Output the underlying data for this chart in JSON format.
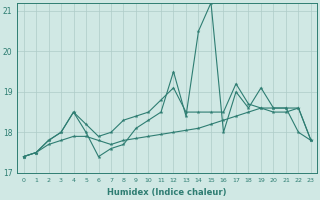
{
  "title": "",
  "xlabel": "Humidex (Indice chaleur)",
  "x_values": [
    0,
    1,
    2,
    3,
    4,
    5,
    6,
    7,
    8,
    9,
    10,
    11,
    12,
    13,
    14,
    15,
    16,
    17,
    18,
    19,
    20,
    21,
    22,
    23
  ],
  "line1": [
    17.4,
    17.5,
    17.8,
    18.0,
    18.5,
    18.0,
    17.4,
    17.6,
    17.7,
    18.1,
    18.3,
    18.5,
    19.5,
    18.4,
    20.5,
    21.2,
    18.0,
    19.0,
    18.6,
    19.1,
    18.6,
    18.6,
    18.0,
    17.8
  ],
  "line2": [
    17.4,
    17.5,
    17.8,
    18.0,
    18.5,
    18.2,
    17.9,
    18.0,
    18.3,
    18.4,
    18.5,
    18.8,
    19.1,
    18.5,
    18.5,
    18.5,
    18.5,
    19.2,
    18.7,
    18.6,
    18.5,
    18.5,
    18.6,
    17.8
  ],
  "line3": [
    17.4,
    17.5,
    17.7,
    17.8,
    17.9,
    17.9,
    17.8,
    17.7,
    17.8,
    17.85,
    17.9,
    17.95,
    18.0,
    18.05,
    18.1,
    18.2,
    18.3,
    18.4,
    18.5,
    18.6,
    18.6,
    18.6,
    18.6,
    17.8
  ],
  "ylim": [
    17.0,
    21.2
  ],
  "yticks": [
    17,
    18,
    19,
    20,
    21
  ],
  "xticks": [
    0,
    1,
    2,
    3,
    4,
    5,
    6,
    7,
    8,
    9,
    10,
    11,
    12,
    13,
    14,
    15,
    16,
    17,
    18,
    19,
    20,
    21,
    22,
    23
  ],
  "line_color": "#2e7d72",
  "bg_color": "#d0e8e4",
  "grid_color": "#aeccc8",
  "tick_label_color": "#2e7d72"
}
